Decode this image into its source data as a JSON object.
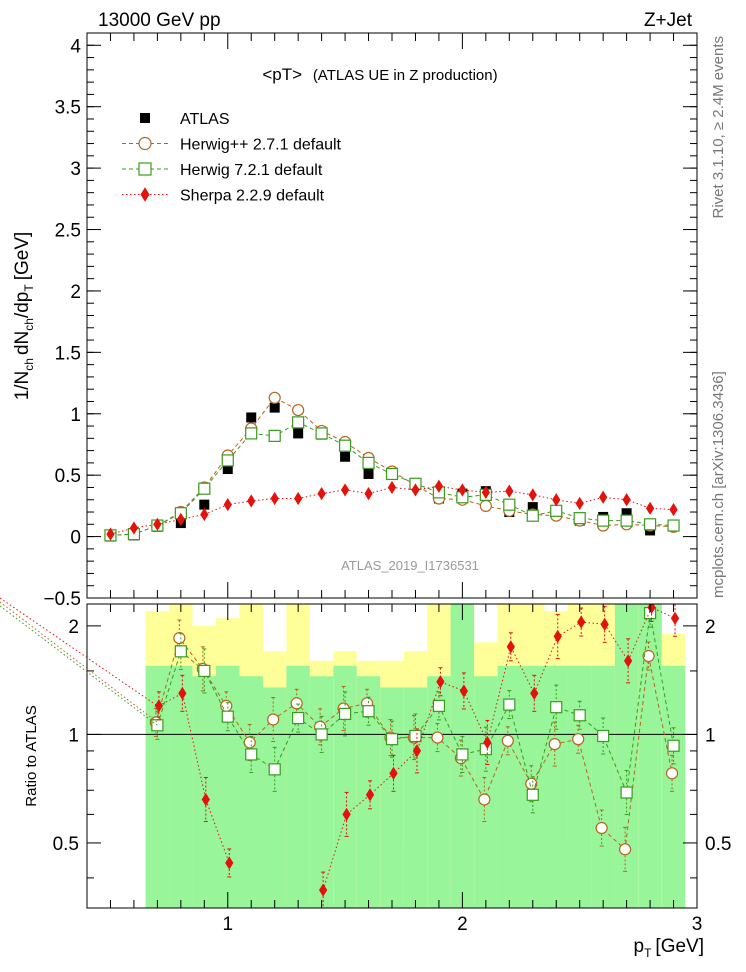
{
  "header": {
    "left_label": "13000 GeV pp",
    "right_label": "Z+Jet"
  },
  "side_labels": {
    "rivet": "Rivet 3.1.10, ≥ 2.4M events",
    "mcplots": "mcplots.cern.ch [arXiv:1306.3436]"
  },
  "chart_data": [
    {
      "type": "scatter",
      "panel": "main",
      "title": "<pT>",
      "subtitle": "(ATLAS UE in Z production)",
      "ylabel": "1/N_ch dN_ch/dp_T [GeV]",
      "xlim": [
        0.4,
        3.0
      ],
      "ylim": [
        -0.5,
        4.1
      ],
      "grid": false,
      "legend_position": "top-left",
      "watermark": "ATLAS_2019_I1736531",
      "y_ticks": [
        -0.5,
        0,
        0.5,
        1,
        1.5,
        2,
        2.5,
        3,
        3.5,
        4
      ],
      "y_tick_labels": [
        "−0.5",
        "0",
        "0.5",
        "1",
        "1.5",
        "2",
        "2.5",
        "3",
        "3.5",
        "4"
      ],
      "x": [
        0.5,
        0.6,
        0.7,
        0.8,
        0.9,
        1.0,
        1.1,
        1.2,
        1.3,
        1.4,
        1.5,
        1.6,
        1.7,
        1.8,
        1.9,
        2.0,
        2.1,
        2.2,
        2.3,
        2.4,
        2.5,
        2.6,
        2.7,
        2.8,
        2.9
      ],
      "series": [
        {
          "name": "ATLAS",
          "color": "#000000",
          "marker": "filled-square",
          "values": [
            0.0,
            0.01,
            0.08,
            0.11,
            0.26,
            0.55,
            0.97,
            1.05,
            0.84,
            0.83,
            0.65,
            0.51,
            0.52,
            0.42,
            0.31,
            0.35,
            0.37,
            0.2,
            0.24,
            0.18,
            0.13,
            0.16,
            0.19,
            0.05,
            0.09
          ]
        },
        {
          "name": "Herwig++ 2.7.1 default",
          "color": "#b5651d",
          "marker": "open-circle",
          "values": [
            0.01,
            0.02,
            0.09,
            0.2,
            0.4,
            0.66,
            0.88,
            1.13,
            1.03,
            0.86,
            0.77,
            0.64,
            0.53,
            0.42,
            0.31,
            0.3,
            0.25,
            0.21,
            0.18,
            0.17,
            0.13,
            0.09,
            0.1,
            0.09,
            0.08
          ]
        },
        {
          "name": "Herwig 7.2.1 default",
          "color": "#3a9b1e",
          "marker": "open-square",
          "values": [
            0.01,
            0.02,
            0.09,
            0.19,
            0.39,
            0.62,
            0.84,
            0.82,
            0.93,
            0.84,
            0.74,
            0.6,
            0.51,
            0.43,
            0.36,
            0.32,
            0.34,
            0.26,
            0.17,
            0.21,
            0.15,
            0.13,
            0.13,
            0.1,
            0.09
          ]
        },
        {
          "name": "Sherpa 2.2.9 default",
          "color": "#e3120b",
          "marker": "filled-diamond",
          "values": [
            0.02,
            0.07,
            0.1,
            0.14,
            0.18,
            0.26,
            0.29,
            0.31,
            0.31,
            0.35,
            0.38,
            0.35,
            0.4,
            0.38,
            0.41,
            0.38,
            0.36,
            0.37,
            0.34,
            0.3,
            0.27,
            0.32,
            0.3,
            0.23,
            0.22
          ]
        }
      ]
    },
    {
      "type": "scatter",
      "panel": "ratio",
      "ylabel": "Ratio to ATLAS",
      "xlabel": "p_T [GeV]",
      "xlim": [
        0.4,
        3.0
      ],
      "ylim": [
        0.33,
        2.3
      ],
      "reference_line": 1,
      "x_ticks": [
        1,
        2,
        3
      ],
      "x_tick_labels": [
        "1",
        "2",
        "3"
      ],
      "y_ticks": [
        0.5,
        1,
        2
      ],
      "y_tick_labels": [
        "0.5",
        "1",
        "2"
      ],
      "bands": {
        "x_edges": [
          0.65,
          0.75,
          0.85,
          0.95,
          1.05,
          1.15,
          1.25,
          1.35,
          1.45,
          1.55,
          1.65,
          1.75,
          1.85,
          1.95,
          2.05,
          2.15,
          2.25,
          2.35,
          2.45,
          2.55,
          2.65,
          2.75,
          2.85,
          2.95
        ],
        "stat_color": "#99f599",
        "syst_color": "#ffff99",
        "stat_low": [
          0.33,
          0.33,
          0.33,
          0.33,
          0.33,
          0.33,
          0.33,
          0.33,
          0.33,
          0.33,
          0.33,
          0.33,
          0.33,
          0.33,
          0.33,
          0.33,
          0.33,
          0.33,
          0.33,
          0.33,
          0.33,
          0.33,
          0.33
        ],
        "stat_high": [
          1.55,
          1.55,
          1.45,
          1.55,
          1.45,
          1.35,
          1.55,
          1.45,
          1.55,
          1.45,
          1.35,
          1.35,
          1.45,
          2.3,
          1.45,
          1.55,
          1.55,
          1.55,
          1.55,
          1.55,
          2.3,
          2.3,
          1.55
        ],
        "syst_low": [
          0.33,
          0.33,
          0.5,
          0.33,
          0.33,
          0.5,
          0.33,
          0.33,
          0.33,
          0.33,
          0.33,
          0.5,
          0.33,
          0.33,
          0.33,
          0.5,
          0.33,
          0.33,
          0.5,
          0.33,
          0.5,
          0.33,
          0.33
        ],
        "syst_high": [
          2.2,
          2.3,
          2.0,
          2.1,
          2.3,
          1.7,
          2.3,
          1.6,
          1.7,
          1.6,
          1.6,
          1.7,
          2.3,
          2.3,
          1.8,
          2.3,
          2.3,
          2.2,
          2.3,
          2.3,
          2.3,
          2.3,
          1.9
        ]
      },
      "x": [
        0.7,
        0.8,
        0.9,
        1.0,
        1.1,
        1.2,
        1.3,
        1.4,
        1.5,
        1.6,
        1.7,
        1.8,
        1.9,
        2.0,
        2.1,
        2.2,
        2.3,
        2.4,
        2.5,
        2.6,
        2.7,
        2.8,
        2.9
      ],
      "series": [
        {
          "name": "Herwig++ 2.7.1 default",
          "color": "#b5651d",
          "marker": "open-circle",
          "values": [
            1.08,
            1.85,
            1.52,
            1.2,
            0.95,
            1.1,
            1.22,
            1.05,
            1.18,
            1.22,
            0.98,
            0.98,
            0.98,
            0.86,
            0.66,
            0.96,
            0.73,
            0.94,
            0.97,
            0.55,
            0.48,
            1.65,
            0.78
          ]
        },
        {
          "name": "Herwig 7.2.1 default",
          "color": "#3a9b1e",
          "marker": "open-square",
          "values": [
            1.06,
            1.7,
            1.5,
            1.12,
            0.88,
            0.8,
            1.11,
            1.0,
            1.14,
            1.16,
            0.97,
            0.99,
            1.2,
            0.88,
            0.91,
            1.21,
            0.68,
            1.19,
            1.13,
            0.99,
            0.69,
            2.17,
            0.93
          ]
        },
        {
          "name": "Sherpa 2.2.9 default",
          "color": "#e3120b",
          "marker": "filled-diamond",
          "values": [
            1.2,
            1.3,
            0.66,
            0.44,
            null,
            null,
            null,
            0.37,
            0.6,
            0.68,
            0.78,
            0.9,
            1.4,
            1.32,
            0.95,
            1.75,
            1.3,
            1.87,
            2.05,
            2.02,
            1.6,
            2.25,
            2.1
          ]
        }
      ]
    }
  ]
}
